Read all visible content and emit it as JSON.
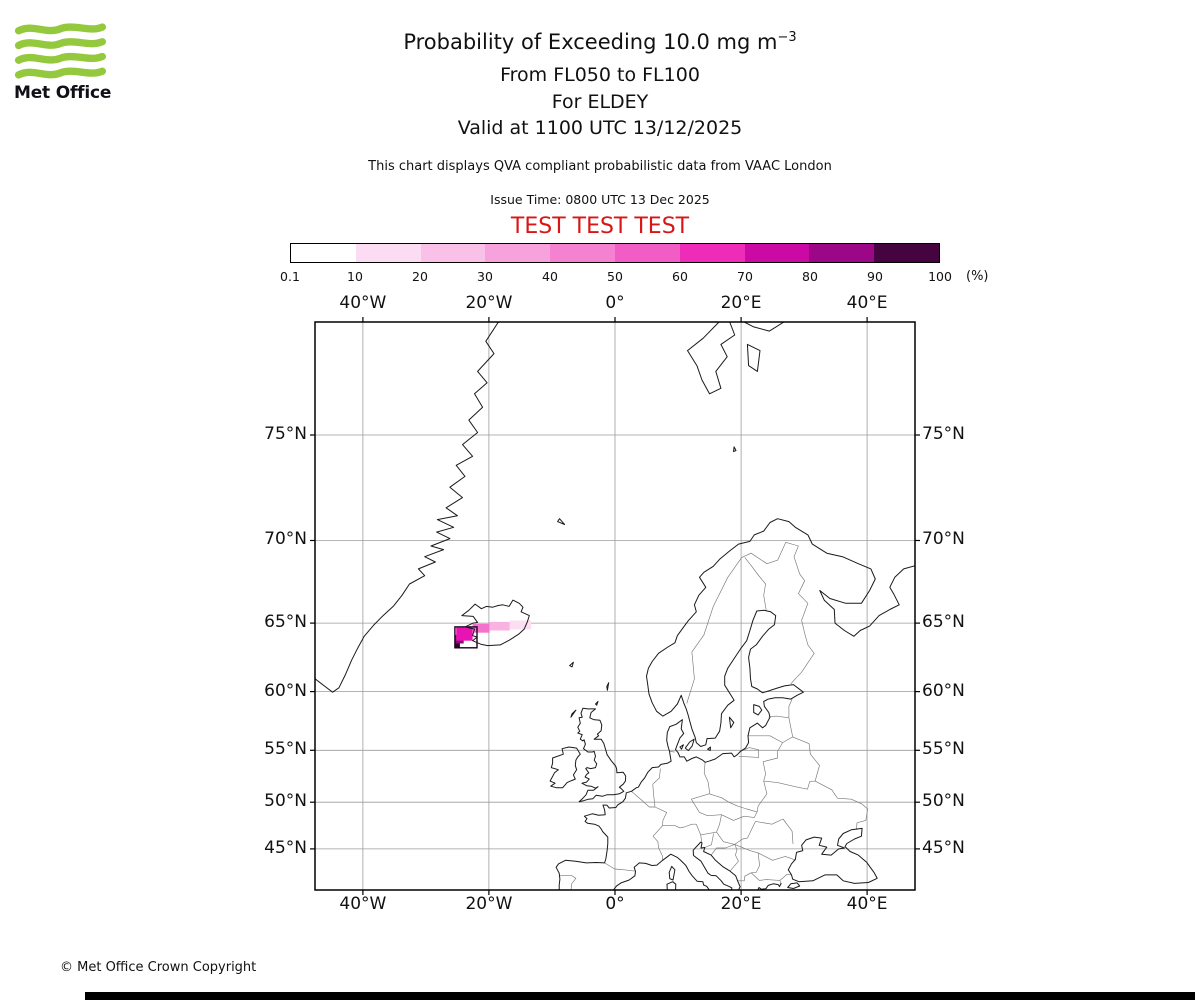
{
  "logo": {
    "brand": "Met Office"
  },
  "header": {
    "title_main": "Probability of Exceeding 10.0 mg m",
    "title_sup": "−3",
    "subtitle_flight_levels": "From FL050 to FL100",
    "subtitle_source": "For ELDEY",
    "subtitle_valid": "Valid at 1100 UTC 13/12/2025",
    "qva_note": "This chart displays QVA compliant probabilistic data from VAAC London",
    "issue_time": "Issue Time: 0800 UTC 13 Dec 2025",
    "test_banner": "TEST TEST TEST"
  },
  "colorbar": {
    "tick_labels": [
      "0.1",
      "10",
      "20",
      "30",
      "40",
      "50",
      "60",
      "70",
      "80",
      "90",
      "100"
    ],
    "unit_label": "(%)",
    "segment_colors": [
      "#ffffff",
      "#fbdcf2",
      "#f9c0e8",
      "#f7a2dc",
      "#f582d1",
      "#f25cc5",
      "#ee2cb7",
      "#cb09a5",
      "#9b0787",
      "#45033f"
    ]
  },
  "map": {
    "lon_ticks": [
      {
        "deg": -40,
        "label": "40°W"
      },
      {
        "deg": -20,
        "label": "20°W"
      },
      {
        "deg": 0,
        "label": "0°"
      },
      {
        "deg": 20,
        "label": "20°E"
      },
      {
        "deg": 40,
        "label": "40°E"
      }
    ],
    "lat_ticks": [
      {
        "deg": 75,
        "label": "75°N"
      },
      {
        "deg": 70,
        "label": "70°N"
      },
      {
        "deg": 65,
        "label": "65°N"
      },
      {
        "deg": 60,
        "label": "60°N"
      },
      {
        "deg": 55,
        "label": "55°N"
      },
      {
        "deg": 50,
        "label": "50°N"
      },
      {
        "deg": 45,
        "label": "45°N"
      }
    ]
  },
  "chart_data": {
    "type": "map",
    "projection": "mercator",
    "lon_range": [
      -47.6,
      47.6
    ],
    "lat_range": [
      40.2,
      79.0
    ],
    "grid": {
      "lon_interval_deg": 20,
      "lat_interval_deg": 5
    },
    "volcano": "ELDEY",
    "threshold": "10.0 mg m-3",
    "flight_levels": "FL050 to FL100",
    "plume_source_box": {
      "lon": [
        -25.4,
        -21.9
      ],
      "lat": [
        63.3,
        64.75
      ],
      "stroke": "#1e0220"
    },
    "plume_cells": [
      {
        "lon": [
          -25.4,
          -24.6
        ],
        "lat": [
          63.3,
          63.9
        ],
        "prob_range_pct": "90-100",
        "color": "#33032e"
      },
      {
        "lon": [
          -25.4,
          -24.0
        ],
        "lat": [
          63.6,
          64.2
        ],
        "prob_range_pct": "70-90",
        "color": "#8a0b76"
      },
      {
        "lon": [
          -25.2,
          -22.6
        ],
        "lat": [
          63.8,
          64.7
        ],
        "prob_range_pct": "50-70",
        "color": "#e913b4"
      },
      {
        "lon": [
          -22.6,
          -19.9
        ],
        "lat": [
          64.35,
          64.95
        ],
        "prob_range_pct": "30-50",
        "color": "#f472ce"
      },
      {
        "lon": [
          -19.9,
          -16.7
        ],
        "lat": [
          64.5,
          65.08
        ],
        "prob_range_pct": "10-30",
        "color": "#f9b3e2"
      },
      {
        "lon": [
          -16.7,
          -13.3
        ],
        "lat": [
          64.58,
          65.18
        ],
        "prob_range_pct": "0.1-10",
        "color": "#fcdef2"
      }
    ]
  },
  "footer": {
    "copyright": "© Met Office Crown Copyright"
  }
}
